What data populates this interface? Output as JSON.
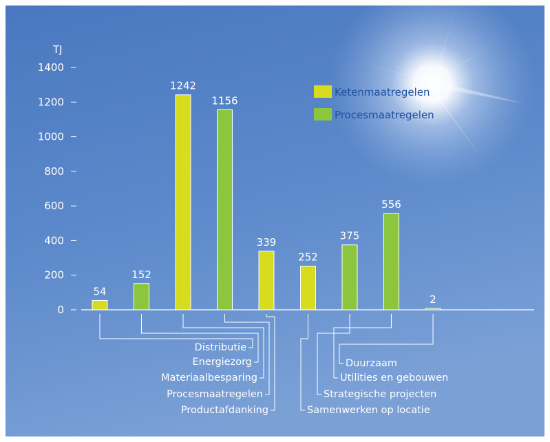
{
  "chart_data": {
    "type": "bar",
    "ylabel": "TJ",
    "ylim": [
      0,
      1400
    ],
    "yticks": [
      0,
      200,
      400,
      600,
      800,
      1000,
      1200,
      1400
    ],
    "grid": false,
    "legend_position": "top-right",
    "series": [
      {
        "name": "Ketenmaatregelen",
        "color": "#d8dc1e"
      },
      {
        "name": "Procesmaatregelen",
        "color": "#8cc63f"
      }
    ],
    "bars": [
      {
        "label": "Distributie",
        "series": "Ketenmaatregelen",
        "value": 54
      },
      {
        "label": "Energiezorg",
        "series": "Procesmaatregelen",
        "value": 152
      },
      {
        "label": "Materiaalbesparing",
        "series": "Ketenmaatregelen",
        "value": 1242
      },
      {
        "label": "Procesmaatregelen",
        "series": "Procesmaatregelen",
        "value": 1156
      },
      {
        "label": "Productafdanking",
        "series": "Ketenmaatregelen",
        "value": 339
      },
      {
        "label": "Samenwerken op locatie",
        "series": "Ketenmaatregelen",
        "value": 252
      },
      {
        "label": "Strategische projecten",
        "series": "Procesmaatregelen",
        "value": 375
      },
      {
        "label": "Utilities en gebouwen",
        "series": "Procesmaatregelen",
        "value": 556
      },
      {
        "label": "Duurzaam",
        "series": "Procesmaatregelen",
        "value": 2
      }
    ]
  },
  "colors": {
    "background_top": "#4f7fc4",
    "background_bottom": "#6c95cf",
    "ketenmaatregelen": "#d8dc1e",
    "procesmaatregelen": "#8cc63f",
    "axis": "#ffffff",
    "legend_text": "#1f4fa0"
  }
}
